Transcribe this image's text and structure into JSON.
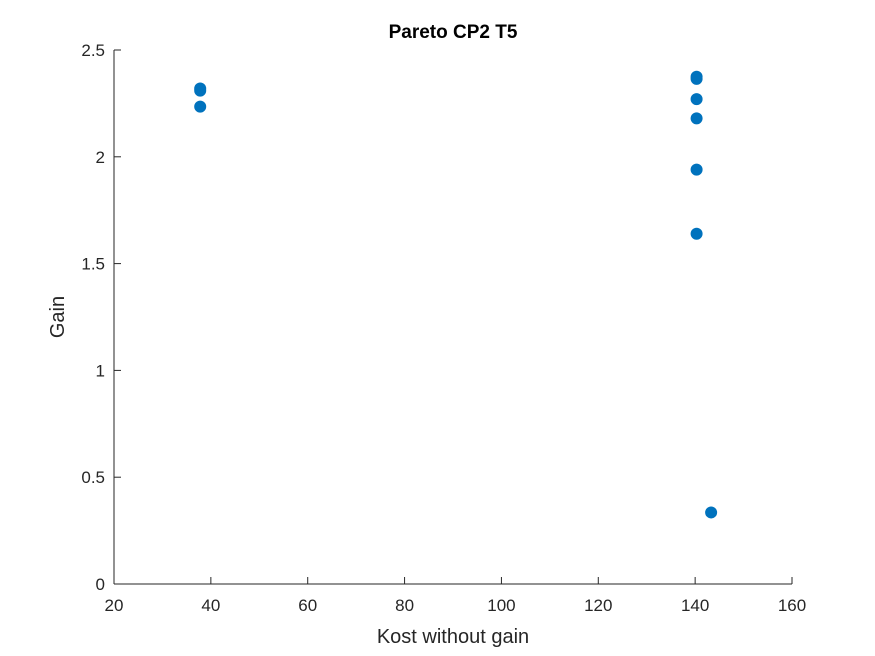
{
  "chart_data": {
    "type": "scatter",
    "title": "Pareto CP2 T5",
    "xlabel": "Kost without gain",
    "ylabel": "Gain",
    "xlim": [
      20,
      160
    ],
    "ylim": [
      0,
      2.5
    ],
    "xticks": [
      20,
      40,
      60,
      80,
      100,
      120,
      140,
      160
    ],
    "yticks": [
      0,
      0.5,
      1,
      1.5,
      2,
      2.5
    ],
    "xtick_labels": [
      "20",
      "40",
      "60",
      "80",
      100,
      120,
      140,
      160
    ],
    "ytick_labels": [
      "0",
      "0.5",
      "1",
      "1.5",
      "2",
      "2.5"
    ],
    "grid": false,
    "legend": "none",
    "marker_color": "#0072BD",
    "series": [
      {
        "points": [
          {
            "x": 37.8,
            "y": 2.32
          },
          {
            "x": 37.8,
            "y": 2.31
          },
          {
            "x": 37.8,
            "y": 2.235
          },
          {
            "x": 140.3,
            "y": 2.375
          },
          {
            "x": 140.3,
            "y": 2.365
          },
          {
            "x": 140.3,
            "y": 2.27
          },
          {
            "x": 140.3,
            "y": 2.18
          },
          {
            "x": 140.3,
            "y": 1.94
          },
          {
            "x": 140.3,
            "y": 1.64
          },
          {
            "x": 143.3,
            "y": 0.335
          }
        ]
      }
    ]
  }
}
